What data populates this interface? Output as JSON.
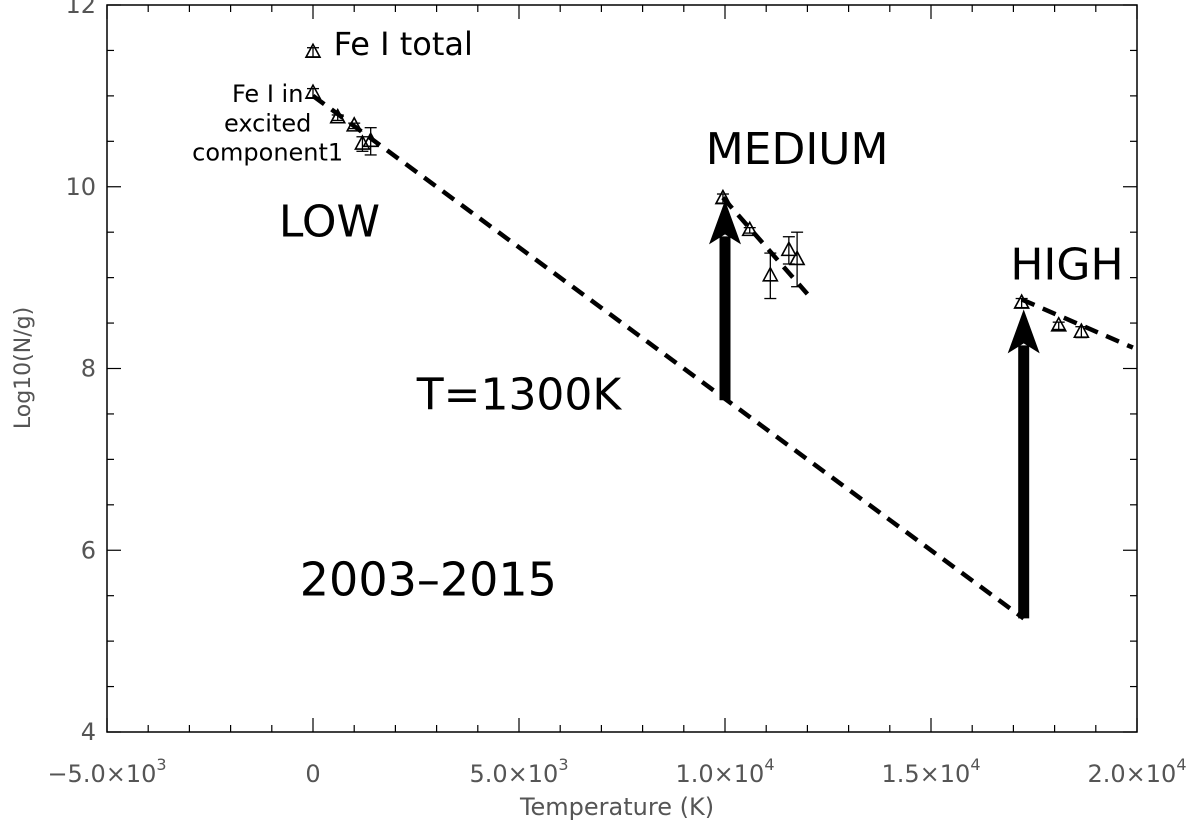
{
  "chart_data": {
    "type": "scatter",
    "title": "",
    "xlabel": "Temperature (K)",
    "ylabel": "Log10(N/g)",
    "xlim": [
      -5000,
      20000
    ],
    "ylim": [
      4,
      12
    ],
    "grid": false,
    "x_ticks": [
      {
        "value": -5000,
        "mantissa": "−5.0×10",
        "exp": "3"
      },
      {
        "value": 0,
        "mantissa": "0",
        "exp": ""
      },
      {
        "value": 5000,
        "mantissa": "5.0×10",
        "exp": "3"
      },
      {
        "value": 10000,
        "mantissa": "1.0×10",
        "exp": "4"
      },
      {
        "value": 15000,
        "mantissa": "1.5×10",
        "exp": "4"
      },
      {
        "value": 20000,
        "mantissa": "2.0×10",
        "exp": "4"
      }
    ],
    "y_ticks": [
      {
        "value": 4,
        "label": "4"
      },
      {
        "value": 6,
        "label": "6"
      },
      {
        "value": 8,
        "label": "8"
      },
      {
        "value": 10,
        "label": "10"
      },
      {
        "value": 12,
        "label": "12"
      }
    ],
    "x_minor_step": 1000,
    "y_minor_step": 0.5,
    "series": [
      {
        "name": "Fe I total",
        "points": [
          {
            "x": 0,
            "y": 11.48,
            "err": 0.05
          }
        ]
      },
      {
        "name": "Fe I in excited component1",
        "points": [
          {
            "x": 0,
            "y": 11.03,
            "err": 0.05
          },
          {
            "x": 600,
            "y": 10.76,
            "err": 0.03
          },
          {
            "x": 1000,
            "y": 10.67,
            "err": 0.03
          },
          {
            "x": 1200,
            "y": 10.47,
            "err": 0.08
          },
          {
            "x": 1400,
            "y": 10.5,
            "err": 0.15
          },
          {
            "x": 9950,
            "y": 9.87,
            "err": 0.05
          },
          {
            "x": 10600,
            "y": 9.52,
            "err": 0.03
          },
          {
            "x": 11100,
            "y": 9.02,
            "err": 0.25
          },
          {
            "x": 11550,
            "y": 9.3,
            "err": 0.15
          },
          {
            "x": 11750,
            "y": 9.2,
            "err": 0.3
          },
          {
            "x": 17200,
            "y": 8.72,
            "err": 0.05
          },
          {
            "x": 18100,
            "y": 8.47,
            "err": 0.04
          },
          {
            "x": 18650,
            "y": 8.4,
            "err": 0.06
          }
        ]
      }
    ],
    "fit_lines": [
      {
        "name": "T=1300K",
        "x": [
          0,
          17250
        ],
        "y": [
          11.0,
          5.25
        ]
      },
      {
        "name": "medium",
        "x": [
          9950,
          12000
        ],
        "y": [
          9.88,
          8.82
        ]
      },
      {
        "name": "high",
        "x": [
          17200,
          19900
        ],
        "y": [
          8.76,
          8.23
        ]
      }
    ],
    "arrows": [
      {
        "x": 10000,
        "y_from": 7.65,
        "y_to": 9.85
      },
      {
        "x": 17250,
        "y_from": 5.25,
        "y_to": 8.65
      }
    ],
    "annotations": [
      {
        "text": "Fe I total",
        "x": 500,
        "y": 11.45,
        "size": 32,
        "anchor": "start"
      },
      {
        "text": "Fe I in",
        "x": -1100,
        "y": 10.93,
        "size": 24,
        "anchor": "middle"
      },
      {
        "text": "excited",
        "x": -1100,
        "y": 10.61,
        "size": 24,
        "anchor": "middle"
      },
      {
        "text": "component1",
        "x": -1100,
        "y": 10.29,
        "size": 24,
        "anchor": "middle"
      },
      {
        "text": "LOW",
        "x": 400,
        "y": 9.45,
        "size": 44,
        "anchor": "middle"
      },
      {
        "text": "MEDIUM",
        "x": 11750,
        "y": 10.25,
        "size": 44,
        "anchor": "middle"
      },
      {
        "text": "HIGH",
        "x": 18300,
        "y": 8.98,
        "size": 44,
        "anchor": "middle"
      },
      {
        "text": "T=1300K",
        "x": 5000,
        "y": 7.55,
        "size": 44,
        "anchor": "middle"
      },
      {
        "text": "2003–2015",
        "x": 2800,
        "y": 5.5,
        "size": 46,
        "anchor": "middle"
      }
    ]
  }
}
